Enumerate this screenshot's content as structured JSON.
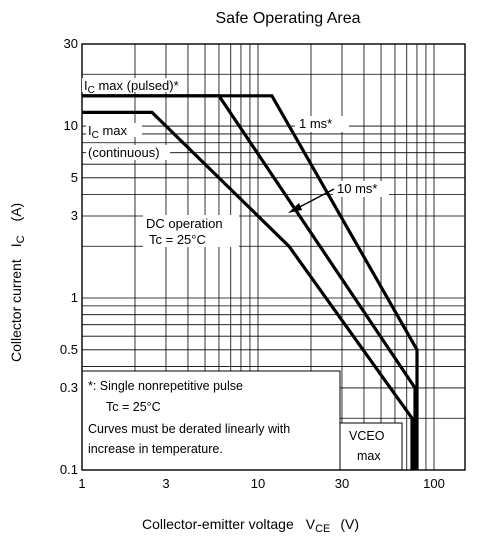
{
  "chart_data": {
    "type": "line",
    "title": "Safe Operating Area",
    "xlabel": {
      "main": "Collector-emitter voltage",
      "sym": "V",
      "sub": "CE",
      "unit": "(V)"
    },
    "ylabel": {
      "main": "Collector current",
      "sym": "I",
      "sub": "C",
      "unit": "(A)"
    },
    "x_scale": "log",
    "y_scale": "log",
    "xlim": [
      1,
      150
    ],
    "ylim": [
      0.1,
      30
    ],
    "x_ticks": [
      {
        "value": 1,
        "label": "1"
      },
      {
        "value": 3,
        "label": "3"
      },
      {
        "value": 10,
        "label": "10"
      },
      {
        "value": 30,
        "label": "30"
      },
      {
        "value": 100,
        "label": "100"
      }
    ],
    "y_ticks": [
      {
        "value": 0.1,
        "label": "0.1"
      },
      {
        "value": 0.3,
        "label": "0.3"
      },
      {
        "value": 0.5,
        "label": "0.5"
      },
      {
        "value": 1,
        "label": "1"
      },
      {
        "value": 3,
        "label": "3"
      },
      {
        "value": 5,
        "label": "5"
      },
      {
        "value": 10,
        "label": "10"
      },
      {
        "value": 30,
        "label": "30"
      }
    ],
    "grid": true,
    "series": [
      {
        "name": "1 ms*",
        "points": [
          [
            1,
            15
          ],
          [
            12,
            15
          ],
          [
            80,
            0.5
          ],
          [
            80,
            0.1
          ]
        ]
      },
      {
        "name": "10 ms*",
        "points": [
          [
            1,
            15
          ],
          [
            6,
            15
          ],
          [
            78,
            0.3
          ],
          [
            78,
            0.1
          ]
        ]
      },
      {
        "name": "DC operation",
        "points": [
          [
            1,
            12
          ],
          [
            2.5,
            12
          ],
          [
            15,
            2
          ],
          [
            75,
            0.2
          ],
          [
            75,
            0.1
          ]
        ]
      }
    ],
    "annotations": {
      "ic_pulsed": {
        "sym": "I",
        "sub": "C",
        "rest": " max (pulsed)*"
      },
      "ic_cont_1": {
        "sym": "I",
        "sub": "C",
        "rest": " max"
      },
      "ic_cont_2": "(continuous)",
      "one_ms": "1 ms*",
      "ten_ms": "10 ms*",
      "dc_1": "DC operation",
      "dc_2": "Tc = 25°C",
      "note_1": "*: Single nonrepetitive pulse",
      "note_2": "Tc = 25°C",
      "note_3": "Curves must be derated linearly with",
      "note_4": "increase in temperature.",
      "vceo_1": "VCEO",
      "vceo_2": "max"
    }
  }
}
